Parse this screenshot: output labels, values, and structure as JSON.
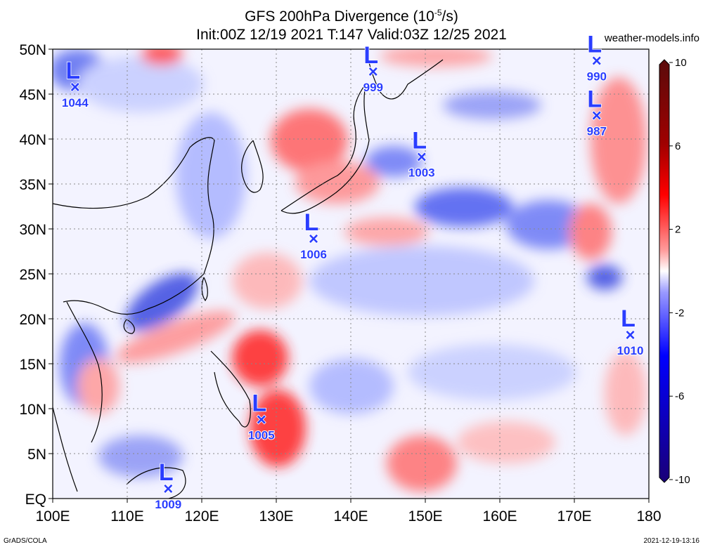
{
  "header": {
    "title_line1": "GFS 200hPa Divergence (10",
    "title_exp": "-5",
    "title_line1_tail": "/s)",
    "title_line2": "Init:00Z 12/19 2021 T:147 Valid:03Z 12/25 2021",
    "site": "weather-models.info"
  },
  "axes": {
    "x_ticks": [
      "100E",
      "110E",
      "120E",
      "130E",
      "140E",
      "150E",
      "160E",
      "170E",
      "180"
    ],
    "y_ticks": [
      "EQ",
      "5N",
      "10N",
      "15N",
      "20N",
      "25N",
      "30N",
      "35N",
      "40N",
      "45N",
      "50N"
    ]
  },
  "colorbar": {
    "labels": [
      "10",
      "6",
      "2",
      "-2",
      "-6",
      "-10"
    ],
    "stops": [
      "#5a0b0b",
      "#a00000",
      "#ff0000",
      "#ffffff",
      "#0000ff",
      "#1a0077"
    ]
  },
  "lows": [
    {
      "pressure": "1044",
      "lon": 103,
      "lat": 45.8
    },
    {
      "pressure": "999",
      "lon": 143,
      "lat": 47.5
    },
    {
      "pressure": "990",
      "lon": 173,
      "lat": 48.7
    },
    {
      "pressure": "987",
      "lon": 173,
      "lat": 42.6
    },
    {
      "pressure": "1003",
      "lon": 149.5,
      "lat": 38
    },
    {
      "pressure": "1006",
      "lon": 135,
      "lat": 28.9
    },
    {
      "pressure": "1010",
      "lon": 177.5,
      "lat": 18.2
    },
    {
      "pressure": "1005",
      "lon": 128,
      "lat": 8.8
    },
    {
      "pressure": "1009",
      "lon": 115.5,
      "lat": 1.1
    }
  ],
  "footer": {
    "left": "GrADS/COLA",
    "right": "2021-12-19-13:16"
  }
}
